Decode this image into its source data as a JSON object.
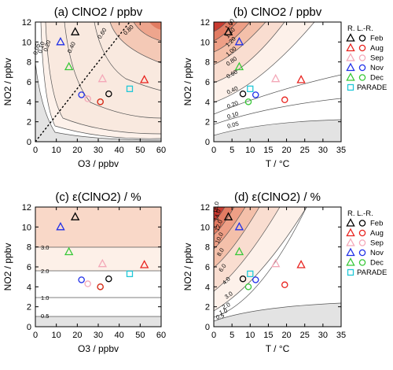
{
  "chart_data": [
    {
      "panel": "a",
      "type": "contour",
      "title": "(a) ClNO2 / ppbv",
      "xlabel": "O3 / ppbv",
      "ylabel": "NO2 / ppbv",
      "xlim": [
        0,
        60
      ],
      "ylim": [
        0,
        12
      ],
      "xticks": [
        0,
        10,
        20,
        30,
        40,
        50,
        60
      ],
      "yticks": [
        0,
        2,
        4,
        6,
        8,
        10,
        12
      ],
      "contour_labels": [
        "0.05",
        "0.10",
        "0.20",
        "0.40",
        "0.60",
        "0.80"
      ],
      "points": [
        {
          "series": "R. L.-R.",
          "x": 19,
          "y": 11.0
        },
        {
          "series": "Aug",
          "x": 52,
          "y": 6.2
        },
        {
          "series": "Feb",
          "x": 35,
          "y": 4.8
        },
        {
          "series": "Sep",
          "x": 32,
          "y": 6.3
        },
        {
          "series": "Sep",
          "x": 25,
          "y": 4.3
        },
        {
          "series": "Nov",
          "x": 12,
          "y": 10.0
        },
        {
          "series": "Nov",
          "x": 22,
          "y": 4.7
        },
        {
          "series": "Dec",
          "x": 16,
          "y": 7.5
        },
        {
          "series": "Dec",
          "x": 31,
          "y": 4.0
        },
        {
          "series": "Aug",
          "x": 31,
          "y": 4.0
        },
        {
          "series": "PARADE",
          "x": 45,
          "y": 5.3
        }
      ]
    },
    {
      "panel": "b",
      "type": "contour",
      "title": "(b) ClNO2 / ppbv",
      "xlabel": "T / °C",
      "ylabel": "NO2 / ppbv",
      "xlim": [
        0,
        35
      ],
      "ylim": [
        0,
        12
      ],
      "xticks": [
        0,
        5,
        10,
        15,
        20,
        25,
        30,
        35
      ],
      "yticks": [
        0,
        2,
        4,
        6,
        8,
        10,
        12
      ],
      "contour_labels": [
        "0.05",
        "0.10",
        "0.20",
        "0.40",
        "0.60",
        "0.80",
        "1.00",
        "1.20",
        "1.40",
        "1.60"
      ],
      "points": [
        {
          "series": "R. L.-R.",
          "x": 4,
          "y": 11.0
        },
        {
          "series": "Aug",
          "x": 24,
          "y": 6.2
        },
        {
          "series": "Aug",
          "x": 19.5,
          "y": 4.2
        },
        {
          "series": "Feb",
          "x": 8,
          "y": 4.8
        },
        {
          "series": "Sep",
          "x": 17,
          "y": 6.3
        },
        {
          "series": "Nov",
          "x": 7,
          "y": 10.0
        },
        {
          "series": "Nov",
          "x": 11.5,
          "y": 4.7
        },
        {
          "series": "Dec",
          "x": 7,
          "y": 7.5
        },
        {
          "series": "Dec",
          "x": 9.5,
          "y": 4.0
        },
        {
          "series": "PARADE",
          "x": 10,
          "y": 5.3
        }
      ],
      "legend": {
        "placement": "right",
        "entries": [
          {
            "symbol": "triangle",
            "name": "R. L.-R."
          },
          {
            "symbol": "circle",
            "name": "Feb",
            "triangle": true
          },
          {
            "symbol": "circle",
            "name": "Aug",
            "triangle": true
          },
          {
            "symbol": "circle",
            "name": "Sep",
            "triangle": true
          },
          {
            "symbol": "circle",
            "name": "Nov",
            "triangle": true
          },
          {
            "symbol": "circle",
            "name": "Dec",
            "triangle": true
          },
          {
            "symbol": "square",
            "name": "PARADE"
          }
        ]
      }
    },
    {
      "panel": "c",
      "type": "contour",
      "title": "(c) ε(ClNO2) / %",
      "xlabel": "O3 / ppbv",
      "ylabel": "NO2 / ppbv",
      "xlim": [
        0,
        60
      ],
      "ylim": [
        0,
        12
      ],
      "xticks": [
        0,
        10,
        20,
        30,
        40,
        50,
        60
      ],
      "yticks": [
        0,
        2,
        4,
        6,
        8,
        10,
        12
      ],
      "contour_labels": [
        "0.5",
        "1.0",
        "2.0",
        "3.0"
      ],
      "points": [
        {
          "series": "R. L.-R.",
          "x": 19,
          "y": 11.0
        },
        {
          "series": "Aug",
          "x": 52,
          "y": 6.2
        },
        {
          "series": "Feb",
          "x": 35,
          "y": 4.8
        },
        {
          "series": "Sep",
          "x": 32,
          "y": 6.3
        },
        {
          "series": "Sep",
          "x": 25,
          "y": 4.3
        },
        {
          "series": "Nov",
          "x": 12,
          "y": 10.0
        },
        {
          "series": "Nov",
          "x": 22,
          "y": 4.7
        },
        {
          "series": "Dec",
          "x": 16,
          "y": 7.5
        },
        {
          "series": "Dec",
          "x": 31,
          "y": 4.0
        },
        {
          "series": "Aug",
          "x": 31,
          "y": 4.0
        },
        {
          "series": "PARADE",
          "x": 45,
          "y": 5.3
        }
      ]
    },
    {
      "panel": "d",
      "type": "contour",
      "title": "(d) ε(ClNO2) / %",
      "xlabel": "T / °C",
      "ylabel": "NO2 / ppbv",
      "xlim": [
        0,
        35
      ],
      "ylim": [
        0,
        12
      ],
      "xticks": [
        0,
        5,
        10,
        15,
        20,
        25,
        30,
        35
      ],
      "yticks": [
        0,
        2,
        4,
        6,
        8,
        10,
        12
      ],
      "contour_labels": [
        "0.5",
        "1.0",
        "2.0",
        "3.0",
        "4.0",
        "6.0",
        "8.0",
        "10.0",
        "12.0",
        "14.0",
        "16.0"
      ],
      "points": [
        {
          "series": "R. L.-R.",
          "x": 4,
          "y": 11.0
        },
        {
          "series": "Aug",
          "x": 24,
          "y": 6.2
        },
        {
          "series": "Aug",
          "x": 19.5,
          "y": 4.2
        },
        {
          "series": "Feb",
          "x": 8,
          "y": 4.8
        },
        {
          "series": "Sep",
          "x": 17,
          "y": 6.3
        },
        {
          "series": "Nov",
          "x": 7,
          "y": 10.0
        },
        {
          "series": "Nov",
          "x": 11.5,
          "y": 4.7
        },
        {
          "series": "Dec",
          "x": 7,
          "y": 7.5
        },
        {
          "series": "Dec",
          "x": 9.5,
          "y": 4.0
        },
        {
          "series": "PARADE",
          "x": 10,
          "y": 5.3
        }
      ],
      "legend": {
        "placement": "right",
        "entries": [
          {
            "symbol": "triangle",
            "name": "R. L.-R."
          },
          {
            "symbol": "circle",
            "name": "Feb",
            "triangle": true
          },
          {
            "symbol": "circle",
            "name": "Aug",
            "triangle": true
          },
          {
            "symbol": "circle",
            "name": "Sep",
            "triangle": true
          },
          {
            "symbol": "circle",
            "name": "Nov",
            "triangle": true
          },
          {
            "symbol": "circle",
            "name": "Dec",
            "triangle": true
          },
          {
            "symbol": "square",
            "name": "PARADE"
          }
        ]
      }
    }
  ],
  "series_colors": {
    "R. L.-R.": "#000000",
    "Feb": "#000000",
    "Aug": "#e8221d",
    "Sep": "#f4a8b8",
    "Nov": "#2030e8",
    "Dec": "#38c838",
    "PARADE": "#20c8d8"
  },
  "series_markers": {
    "R. L.-R.": "triangle",
    "Feb": "circle",
    "Aug": "triangle",
    "Sep": "triangle",
    "Nov": "triangle",
    "Dec": "triangle",
    "PARADE": "square"
  }
}
